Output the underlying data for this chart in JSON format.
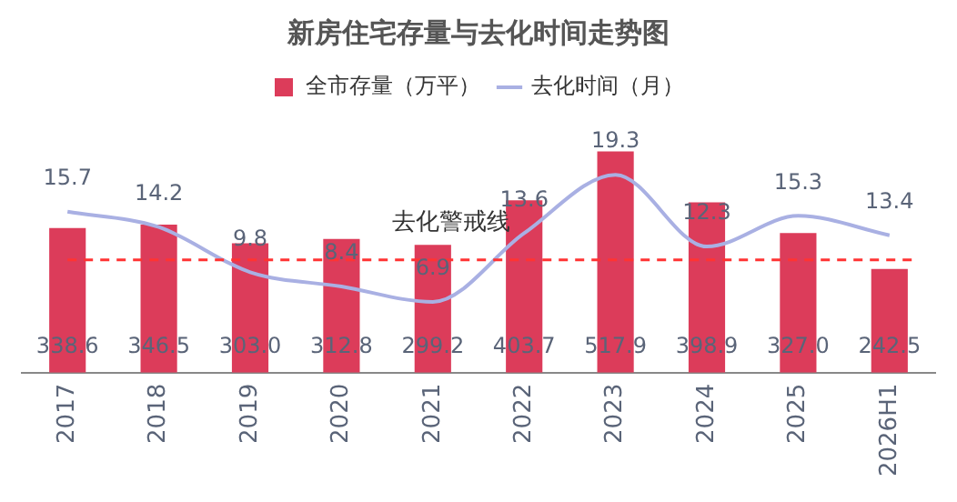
{
  "chart_data": {
    "type": "bar",
    "title": "新房住宅存量与去化时间走势图",
    "categories": [
      "2017",
      "2018",
      "2019",
      "2020",
      "2021",
      "2022",
      "2023",
      "2024",
      "2025",
      "2026H1"
    ],
    "series": [
      {
        "name": "全市存量（万平）",
        "color": "#dc3c5a",
        "values": [
          338.6,
          346.5,
          303.0,
          312.8,
          299.2,
          403.7,
          517.9,
          398.9,
          327.0,
          242.5
        ],
        "value_labels": [
          "338.6",
          "346.5",
          "303.0",
          "312.8",
          "299.2",
          "403.7",
          "517.9",
          "398.9",
          "327.0",
          "242.5"
        ]
      },
      {
        "name": "去化时间（月）",
        "type": "line",
        "axis": "y2",
        "color": "#a9b0e3",
        "values": [
          15.7,
          14.2,
          9.8,
          8.4,
          6.9,
          13.6,
          19.3,
          12.3,
          15.3,
          13.4
        ]
      }
    ],
    "tick_labels": "x",
    "ref_lines": [
      {
        "axis": "y2",
        "value": 11,
        "label": "去化警戒线",
        "color": "#ff3333",
        "line_style": "dashed"
      }
    ],
    "data_labels": true,
    "legend": "top",
    "grid": false,
    "marker": "none"
  }
}
